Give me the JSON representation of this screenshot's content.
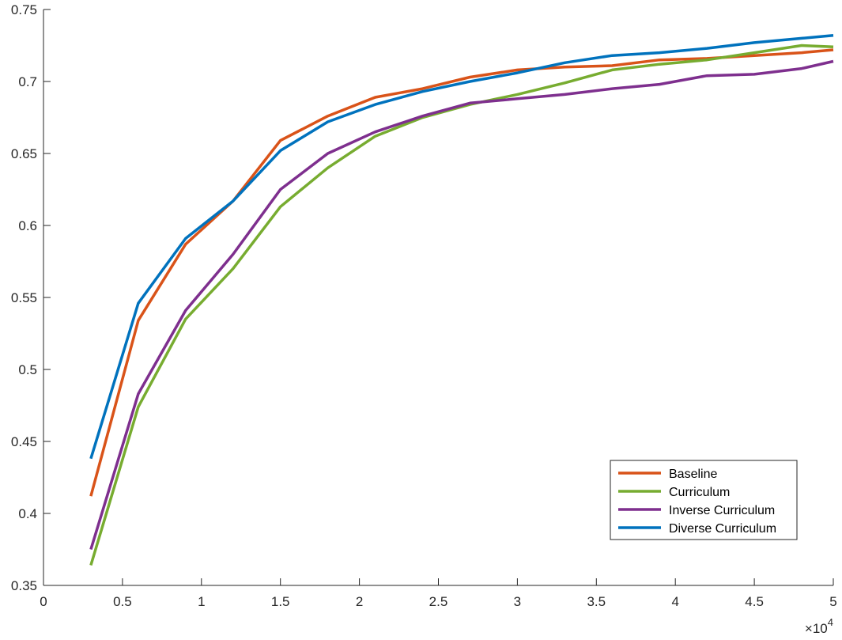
{
  "chart_data": {
    "type": "line",
    "title": "",
    "xlabel": "",
    "ylabel": "",
    "xlim": [
      0,
      50000
    ],
    "ylim": [
      0.35,
      0.75
    ],
    "x_tick_values": [
      0,
      5000,
      10000,
      15000,
      20000,
      25000,
      30000,
      35000,
      40000,
      45000,
      50000
    ],
    "x_tick_labels": [
      "0",
      "0.5",
      "1",
      "1.5",
      "2",
      "2.5",
      "3",
      "3.5",
      "4",
      "4.5",
      "5"
    ],
    "x_exponent_label": {
      "base": "×10",
      "power": "4"
    },
    "y_tick_values": [
      0.35,
      0.4,
      0.45,
      0.5,
      0.55,
      0.6,
      0.65,
      0.7,
      0.75
    ],
    "y_tick_labels": [
      "0.35",
      "0.4",
      "0.45",
      "0.5",
      "0.55",
      "0.6",
      "0.65",
      "0.7",
      "0.75"
    ],
    "grid": false,
    "legend_position": "bottom-right",
    "x": [
      3000,
      6000,
      9000,
      12000,
      15000,
      18000,
      21000,
      24000,
      27000,
      30000,
      33000,
      36000,
      39000,
      42000,
      45000,
      48000,
      50000
    ],
    "series": [
      {
        "name": "Baseline",
        "color": "#D95319",
        "values": [
          0.412,
          0.534,
          0.587,
          0.617,
          0.659,
          0.676,
          0.689,
          0.695,
          0.703,
          0.708,
          0.71,
          0.711,
          0.715,
          0.716,
          0.718,
          0.72,
          0.722
        ]
      },
      {
        "name": "Curriculum",
        "color": "#77AC30",
        "values": [
          0.364,
          0.474,
          0.535,
          0.57,
          0.613,
          0.64,
          0.662,
          0.675,
          0.684,
          0.691,
          0.699,
          0.708,
          0.712,
          0.715,
          0.72,
          0.725,
          0.724
        ]
      },
      {
        "name": "Inverse Curriculum",
        "color": "#7E2F8E",
        "values": [
          0.375,
          0.483,
          0.541,
          0.58,
          0.625,
          0.65,
          0.665,
          0.676,
          0.685,
          0.688,
          0.691,
          0.695,
          0.698,
          0.704,
          0.705,
          0.709,
          0.714
        ]
      },
      {
        "name": "Diverse Curriculum",
        "color": "#0072BD",
        "values": [
          0.438,
          0.546,
          0.591,
          0.617,
          0.652,
          0.672,
          0.684,
          0.693,
          0.7,
          0.706,
          0.713,
          0.718,
          0.72,
          0.723,
          0.727,
          0.73,
          0.732
        ]
      }
    ]
  }
}
